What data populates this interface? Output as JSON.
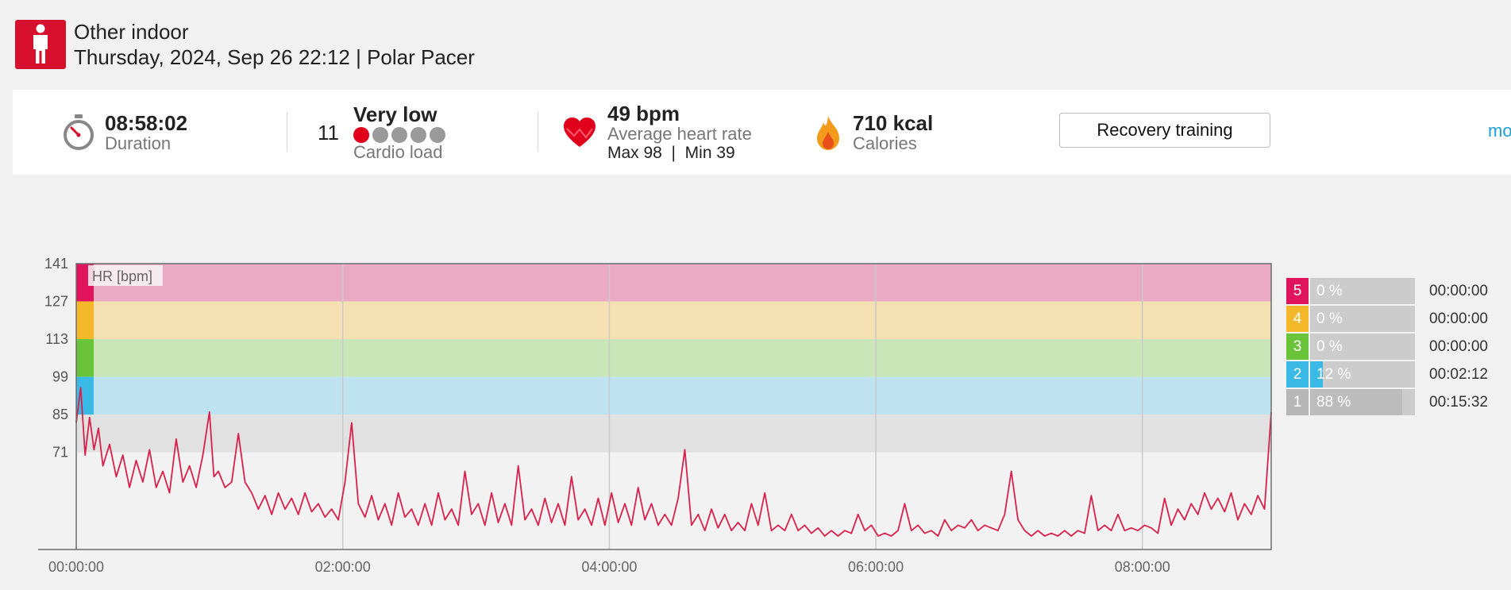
{
  "header": {
    "sport_name": "Other indoor",
    "session_meta": "Thursday, 2024, Sep 26 22:12 | Polar Pacer",
    "sport_icon": "person-icon"
  },
  "summary": {
    "duration": {
      "value": "08:58:02",
      "label": "Duration",
      "icon": "stopwatch-icon"
    },
    "cardio_load": {
      "value": "11",
      "level": "Very low",
      "label": "Cardio load",
      "level_dots_filled": 1,
      "level_dots_total": 5
    },
    "heart_rate": {
      "value": "49 bpm",
      "label": "Average heart rate",
      "max_min": "Max 98  |  Min 39",
      "icon": "heart-icon"
    },
    "calories": {
      "value": "710 kcal",
      "label": "Calories",
      "icon": "flame-icon"
    },
    "benefit_button": "Recovery training",
    "more_link": "mo"
  },
  "colors": {
    "brand_red": "#d7102d",
    "line": "#d8214a",
    "zone5": "#e0145c",
    "zone4": "#f5b82a",
    "zone3": "#6ac43a",
    "zone2": "#3ab8e6",
    "zone1": "#b7b7b7"
  },
  "chart_data": {
    "type": "line",
    "title": "",
    "series_label": "HR [bpm]",
    "xlabel": "",
    "ylabel": "HR [bpm]",
    "x_ticks": [
      "00:00:00",
      "02:00:00",
      "04:00:00",
      "06:00:00",
      "08:00:00"
    ],
    "y_ticks": [
      141,
      127,
      113,
      99,
      85,
      71
    ],
    "xlim": [
      "00:00:00",
      "08:58:02"
    ],
    "ylim": [
      35,
      141
    ],
    "zones": [
      {
        "zone": 5,
        "from": 127,
        "to": 141
      },
      {
        "zone": 4,
        "from": 113,
        "to": 127
      },
      {
        "zone": 3,
        "from": 99,
        "to": 113
      },
      {
        "zone": 2,
        "from": 85,
        "to": 99
      },
      {
        "zone": 1,
        "from": 71,
        "to": 85
      }
    ],
    "series": [
      {
        "name": "HR [bpm]",
        "x_minutes": [
          0,
          2,
          4,
          6,
          8,
          10,
          12,
          15,
          18,
          21,
          24,
          27,
          30,
          33,
          36,
          39,
          42,
          45,
          48,
          51,
          54,
          57,
          60,
          62,
          64,
          67,
          70,
          73,
          76,
          79,
          82,
          85,
          88,
          91,
          94,
          97,
          100,
          103,
          106,
          109,
          112,
          115,
          118,
          121,
          124,
          127,
          130,
          133,
          136,
          139,
          142,
          145,
          148,
          151,
          154,
          157,
          160,
          163,
          166,
          169,
          172,
          175,
          178,
          181,
          184,
          187,
          190,
          193,
          196,
          199,
          202,
          205,
          208,
          211,
          214,
          217,
          220,
          223,
          226,
          229,
          232,
          235,
          238,
          241,
          244,
          247,
          250,
          253,
          256,
          259,
          262,
          265,
          268,
          271,
          274,
          277,
          280,
          283,
          286,
          289,
          292,
          295,
          298,
          301,
          304,
          307,
          310,
          313,
          316,
          319,
          322,
          325,
          328,
          331,
          334,
          337,
          340,
          343,
          346,
          349,
          352,
          355,
          358,
          361,
          364,
          367,
          370,
          373,
          376,
          379,
          382,
          385,
          388,
          391,
          394,
          397,
          400,
          403,
          406,
          409,
          412,
          415,
          418,
          421,
          424,
          427,
          430,
          433,
          436,
          439,
          442,
          445,
          448,
          451,
          454,
          457,
          460,
          463,
          466,
          469,
          472,
          475,
          478,
          481,
          484,
          487,
          490,
          493,
          496,
          499,
          502,
          505,
          508,
          511,
          514,
          517,
          520,
          523,
          526,
          529,
          532,
          535,
          538
        ],
        "values": [
          82,
          95,
          70,
          84,
          72,
          80,
          66,
          74,
          62,
          70,
          58,
          68,
          60,
          72,
          58,
          64,
          56,
          76,
          60,
          66,
          58,
          70,
          86,
          62,
          64,
          58,
          60,
          78,
          60,
          56,
          50,
          55,
          48,
          56,
          50,
          54,
          48,
          56,
          49,
          52,
          47,
          50,
          46,
          60,
          82,
          52,
          47,
          55,
          46,
          52,
          44,
          56,
          47,
          50,
          44,
          52,
          44,
          56,
          46,
          50,
          44,
          64,
          48,
          52,
          44,
          56,
          45,
          52,
          44,
          66,
          46,
          50,
          44,
          54,
          45,
          52,
          44,
          62,
          46,
          50,
          44,
          54,
          44,
          56,
          45,
          52,
          44,
          58,
          46,
          52,
          44,
          48,
          44,
          54,
          72,
          44,
          48,
          42,
          50,
          43,
          48,
          42,
          45,
          42,
          52,
          44,
          56,
          42,
          44,
          42,
          48,
          42,
          44,
          41,
          43,
          40,
          42,
          40,
          42,
          41,
          48,
          42,
          44,
          40,
          41,
          40,
          42,
          52,
          42,
          44,
          41,
          42,
          40,
          46,
          42,
          44,
          43,
          46,
          42,
          44,
          43,
          42,
          48,
          64,
          46,
          42,
          40,
          42,
          40,
          41,
          40,
          42,
          40,
          42,
          41,
          55,
          42,
          44,
          42,
          48,
          42,
          43,
          42,
          44,
          43,
          41,
          54,
          44,
          50,
          46,
          52,
          48,
          56,
          50,
          54,
          49,
          56,
          46,
          52,
          48,
          55,
          50,
          86
        ]
      }
    ],
    "zone_summary": [
      {
        "zone": "5",
        "percent": "0 %",
        "time": "00:00:00",
        "fraction": 0.0
      },
      {
        "zone": "4",
        "percent": "0 %",
        "time": "00:00:00",
        "fraction": 0.0
      },
      {
        "zone": "3",
        "percent": "0 %",
        "time": "00:00:00",
        "fraction": 0.0
      },
      {
        "zone": "2",
        "percent": "12 %",
        "time": "00:02:12",
        "fraction": 0.12
      },
      {
        "zone": "1",
        "percent": "88 %",
        "time": "00:15:32",
        "fraction": 0.88
      }
    ]
  }
}
